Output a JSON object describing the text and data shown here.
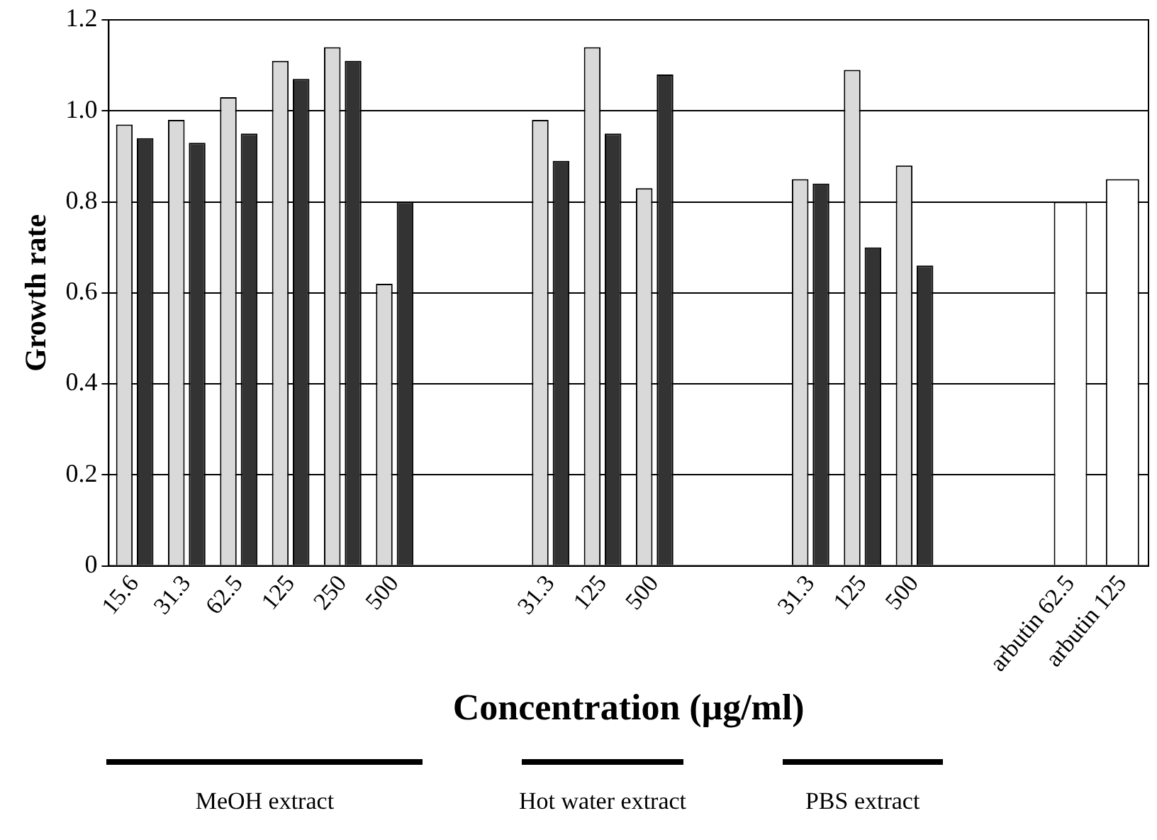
{
  "chart_data": {
    "type": "bar",
    "xlabel": "Concentration (μg/ml)",
    "ylabel": "Growth rate",
    "categories": [
      "15.6",
      "31.3",
      "62.5",
      "125",
      "250",
      "500",
      null,
      null,
      "31.3",
      "125",
      "500",
      null,
      null,
      "31.3",
      "125",
      "500",
      null,
      null,
      "arbutin 62.5",
      "arbutin 125"
    ],
    "series": [
      {
        "color": "#d9d9d9",
        "values": [
          0.97,
          0.98,
          1.03,
          1.11,
          1.14,
          0.62,
          null,
          null,
          0.98,
          1.14,
          0.83,
          null,
          null,
          0.85,
          1.09,
          0.88,
          null,
          null,
          null,
          null
        ]
      },
      {
        "color": "#333333",
        "values": [
          0.94,
          0.93,
          0.95,
          1.07,
          1.11,
          0.8,
          null,
          null,
          0.89,
          0.95,
          1.08,
          null,
          null,
          0.84,
          0.7,
          0.66,
          null,
          null,
          null,
          null
        ]
      },
      {
        "color": "#ffffff",
        "values": [
          null,
          null,
          null,
          null,
          null,
          null,
          null,
          null,
          null,
          null,
          null,
          null,
          null,
          null,
          null,
          null,
          null,
          null,
          0.8,
          0.85
        ]
      }
    ],
    "ylim": [
      0,
      1.2
    ],
    "yticks": [
      0,
      0.2,
      0.4,
      0.6,
      0.8,
      {
        "value": 1,
        "label": "1.0"
      },
      1.2
    ],
    "grid": "y",
    "legend": false,
    "annotations": [
      "MeOH extract",
      "Hot water extract",
      "PBS extract"
    ]
  }
}
